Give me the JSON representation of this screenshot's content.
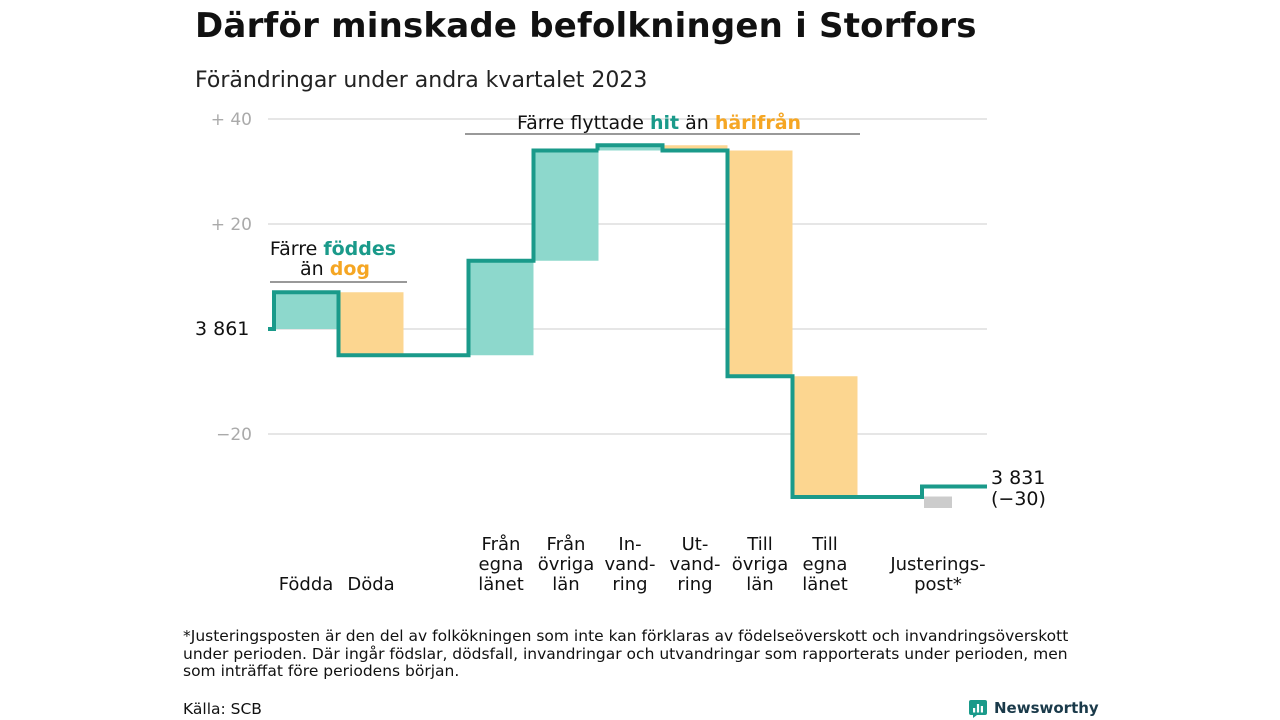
{
  "title": "Därför minskade befolkningen i Storfors",
  "subtitle": "Förändringar under andra kvartalet 2023",
  "chart_data": {
    "type": "waterfall",
    "start_value": 3861,
    "start_label": "3  861",
    "end_value": 3831,
    "end_label": "3 831",
    "end_change_label": "(−30)",
    "ylim": [
      -35,
      40
    ],
    "yticks": [
      {
        "value": 40,
        "label": "+  40"
      },
      {
        "value": 20,
        "label": "+  20"
      },
      {
        "value": 0,
        "label": ""
      },
      {
        "value": -20,
        "label": "−20"
      }
    ],
    "grid": true,
    "colors": {
      "increase": "#8dd8cc",
      "decrease": "#fcd690",
      "adjustment": "#cccccc",
      "line": "#1a9a8a",
      "accent_hit": "#1a9a8a",
      "accent_harifran": "#f5a623",
      "tick_text": "#aaaaaa"
    },
    "steps": [
      {
        "label": "Födda",
        "value": 7,
        "kind": "increase"
      },
      {
        "label": "Döda",
        "value": -12,
        "kind": "decrease"
      },
      {
        "label": "Från egna länet",
        "value": 18,
        "kind": "increase"
      },
      {
        "label": "Från övriga län",
        "value": 21,
        "kind": "increase"
      },
      {
        "label": "In-vand-ring",
        "value": 1,
        "kind": "increase"
      },
      {
        "label": "Ut-vand-ring",
        "value": -1,
        "kind": "decrease"
      },
      {
        "label": "Till övriga län",
        "value": -43,
        "kind": "decrease"
      },
      {
        "label": "Till egna länet",
        "value": -23,
        "kind": "decrease"
      },
      {
        "label": "Justerings-post*",
        "value": 2,
        "kind": "adjustment"
      }
    ],
    "category_labels": [
      [
        "Födda"
      ],
      [
        "Döda"
      ],
      [
        "Från",
        "egna",
        "länet"
      ],
      [
        "Från",
        "övriga",
        "län"
      ],
      [
        "In-",
        "vand-",
        "ring"
      ],
      [
        "Ut-",
        "vand-",
        "ring"
      ],
      [
        "Till",
        "övriga",
        "län"
      ],
      [
        "Till",
        "egna",
        "länet"
      ],
      [
        "Justerings-",
        "post*"
      ]
    ],
    "annotations": {
      "births": {
        "part1": "Färre ",
        "part2": "föddes",
        "part3": "än ",
        "part4": "dog"
      },
      "moves": {
        "part1": "Färre flyttade ",
        "part2": "hit",
        "part3": " än ",
        "part4": "härifrån"
      }
    }
  },
  "footnote": "*Justeringsposten är den del av folkökningen som inte kan förklaras av födelseöverskott och invandringsöverskott under perioden. Där ingår födslar, dödsfall, invandringar och utvandringar som rapporterats under perioden, men som inträffat före periodens början.",
  "source": "Källa: SCB",
  "brand": {
    "name": "Newsworthy",
    "icon": "bar-chart-icon"
  }
}
